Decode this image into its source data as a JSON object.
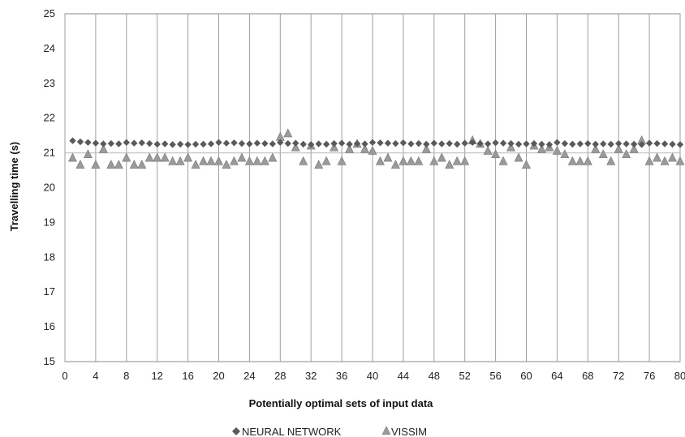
{
  "chart_data": {
    "type": "scatter",
    "xlabel": "Potentially optimal sets of input data",
    "ylabel": "Travelling time (s)",
    "xlim": [
      0,
      80
    ],
    "ylim": [
      15,
      25
    ],
    "xticks": [
      0,
      4,
      8,
      12,
      16,
      20,
      24,
      28,
      32,
      36,
      40,
      44,
      48,
      52,
      56,
      60,
      64,
      68,
      72,
      76,
      80
    ],
    "yticks": [
      15,
      16,
      17,
      18,
      19,
      20,
      21,
      22,
      23,
      24,
      25
    ],
    "grid": {
      "vertical": true,
      "horizontal": false
    },
    "legend": {
      "position": "bottom"
    },
    "series": [
      {
        "name": "NEURAL NETWORK",
        "marker": "diamond",
        "color": "#5a5a5a",
        "x": [
          1,
          2,
          3,
          4,
          5,
          6,
          7,
          8,
          9,
          10,
          11,
          12,
          13,
          14,
          15,
          16,
          17,
          18,
          19,
          20,
          21,
          22,
          23,
          24,
          25,
          26,
          27,
          28,
          29,
          30,
          31,
          32,
          33,
          34,
          35,
          36,
          37,
          38,
          39,
          40,
          41,
          42,
          43,
          44,
          45,
          46,
          47,
          48,
          49,
          50,
          51,
          52,
          53,
          54,
          55,
          56,
          57,
          58,
          59,
          60,
          61,
          62,
          63,
          64,
          65,
          66,
          67,
          68,
          69,
          70,
          71,
          72,
          73,
          74,
          75,
          76,
          77,
          78,
          79,
          80
        ],
        "values": [
          21.35,
          21.32,
          21.3,
          21.28,
          21.26,
          21.27,
          21.26,
          21.3,
          21.28,
          21.29,
          21.27,
          21.25,
          21.26,
          21.24,
          21.25,
          21.24,
          21.25,
          21.25,
          21.26,
          21.3,
          21.28,
          21.29,
          21.27,
          21.26,
          21.28,
          21.27,
          21.26,
          21.3,
          21.27,
          21.28,
          21.25,
          21.24,
          21.26,
          21.25,
          21.27,
          21.28,
          21.25,
          21.27,
          21.26,
          21.3,
          21.29,
          21.28,
          21.27,
          21.29,
          21.26,
          21.27,
          21.25,
          21.28,
          21.26,
          21.27,
          21.25,
          21.28,
          21.3,
          21.27,
          21.26,
          21.29,
          21.28,
          21.27,
          21.25,
          21.26,
          21.27,
          21.25,
          21.24,
          21.3,
          21.27,
          21.25,
          21.26,
          21.27,
          21.25,
          21.26,
          21.25,
          21.27,
          21.26,
          21.25,
          21.24,
          21.28,
          21.27,
          21.26,
          21.25,
          21.24
        ]
      },
      {
        "name": "VISSIM",
        "marker": "triangle",
        "color": "#9a9a9a",
        "x": [
          1,
          2,
          3,
          4,
          5,
          6,
          7,
          8,
          9,
          10,
          11,
          12,
          13,
          14,
          15,
          16,
          17,
          18,
          19,
          20,
          21,
          22,
          23,
          24,
          25,
          26,
          27,
          28,
          29,
          30,
          31,
          32,
          33,
          34,
          35,
          36,
          37,
          38,
          39,
          40,
          41,
          42,
          43,
          44,
          45,
          46,
          47,
          48,
          49,
          50,
          51,
          52,
          53,
          54,
          55,
          56,
          57,
          58,
          59,
          60,
          61,
          62,
          63,
          64,
          65,
          66,
          67,
          68,
          69,
          70,
          71,
          72,
          73,
          74,
          75,
          76,
          77,
          78,
          79,
          80
        ],
        "values": [
          20.85,
          20.65,
          20.95,
          20.65,
          21.1,
          20.65,
          20.65,
          20.85,
          20.65,
          20.65,
          20.85,
          20.85,
          20.85,
          20.75,
          20.75,
          20.85,
          20.65,
          20.75,
          20.75,
          20.75,
          20.65,
          20.75,
          20.85,
          20.75,
          20.75,
          20.75,
          20.85,
          21.45,
          21.55,
          21.15,
          20.75,
          21.2,
          20.65,
          20.75,
          21.15,
          20.75,
          21.1,
          21.25,
          21.1,
          21.05,
          20.75,
          20.85,
          20.65,
          20.75,
          20.75,
          20.75,
          21.1,
          20.75,
          20.85,
          20.65,
          20.75,
          20.75,
          21.35,
          21.25,
          21.05,
          20.95,
          20.75,
          21.15,
          20.85,
          20.65,
          21.2,
          21.1,
          21.15,
          21.05,
          20.95,
          20.75,
          20.75,
          20.75,
          21.1,
          20.95,
          20.75,
          21.1,
          20.95,
          21.1,
          21.35,
          20.75,
          20.85,
          20.75,
          20.85,
          20.75
        ]
      }
    ]
  }
}
